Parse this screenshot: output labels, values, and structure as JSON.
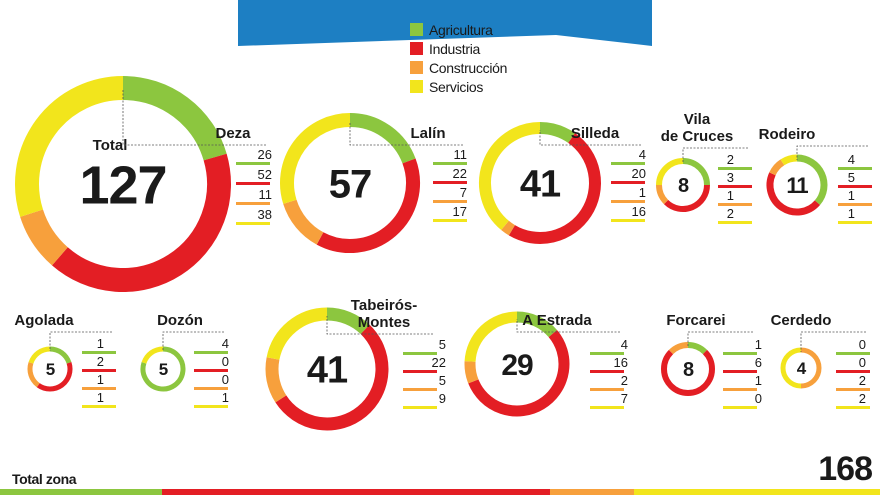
{
  "legend": [
    {
      "name": "Agricultura",
      "color": "#8cc63f"
    },
    {
      "name": "Industria",
      "color": "#e31e24"
    },
    {
      "name": "Construcción",
      "color": "#f7a03c"
    },
    {
      "name": "Servicios",
      "color": "#f2e51c"
    }
  ],
  "chart_data": {
    "type": "donut",
    "series_order": [
      "Agricultura",
      "Industria",
      "Construcción",
      "Servicios"
    ],
    "municipalities": [
      {
        "name": "Deza",
        "total": 127,
        "values": [
          26,
          52,
          11,
          38
        ],
        "total_label": "Total"
      },
      {
        "name": "Lalín",
        "total": 57,
        "values": [
          11,
          22,
          7,
          17
        ]
      },
      {
        "name": "Silleda",
        "total": 41,
        "values": [
          4,
          20,
          1,
          16
        ]
      },
      {
        "name": "Vila de Cruces",
        "name_lines": [
          "Vila",
          "de Cruces"
        ],
        "total": 8,
        "values": [
          2,
          3,
          1,
          2
        ]
      },
      {
        "name": "Rodeiro",
        "total": 11,
        "values": [
          4,
          5,
          1,
          1
        ]
      },
      {
        "name": "Agolada",
        "total": 5,
        "values": [
          1,
          2,
          1,
          1
        ]
      },
      {
        "name": "Dozón",
        "total": 5,
        "values": [
          4,
          0,
          0,
          1
        ]
      },
      {
        "name": "Tabeirós-Montes",
        "name_lines": [
          "Tabeirós-",
          "Montes"
        ],
        "total": 41,
        "values": [
          5,
          22,
          5,
          9
        ]
      },
      {
        "name": "A Estrada",
        "total": 29,
        "values": [
          4,
          16,
          2,
          7
        ]
      },
      {
        "name": "Forcarei",
        "total": 8,
        "values": [
          1,
          6,
          1,
          0
        ]
      },
      {
        "name": "Cerdedo",
        "total": 4,
        "values": [
          0,
          0,
          2,
          2
        ]
      }
    ]
  },
  "footer": {
    "label": "Total zona",
    "total": "168"
  }
}
